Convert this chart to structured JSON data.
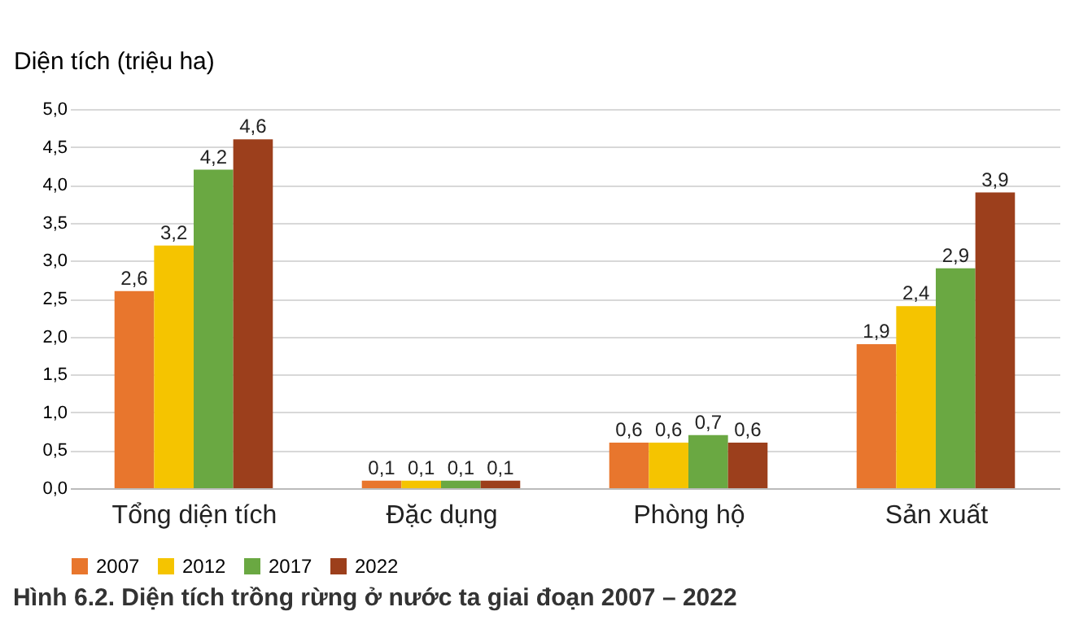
{
  "chart_data": {
    "type": "bar",
    "ylabel": "Diện tích (triệu ha)",
    "categories": [
      "Tổng diện tích",
      "Đặc dụng",
      "Phòng hộ",
      "Sản xuất"
    ],
    "series": [
      {
        "name": "2007",
        "color": "#e8762d",
        "values": [
          2.6,
          0.1,
          0.6,
          1.9
        ],
        "value_labels": [
          "2,6",
          "0,1",
          "0,6",
          "1,9"
        ]
      },
      {
        "name": "2012",
        "color": "#f5c400",
        "values": [
          3.2,
          0.1,
          0.6,
          2.4
        ],
        "value_labels": [
          "3,2",
          "0,1",
          "0,6",
          "2,4"
        ]
      },
      {
        "name": "2017",
        "color": "#6aa842",
        "values": [
          4.2,
          0.1,
          0.7,
          2.9
        ],
        "value_labels": [
          "4,2",
          "0,1",
          "0,7",
          "2,9"
        ]
      },
      {
        "name": "2022",
        "color": "#9c3f1c",
        "values": [
          4.6,
          0.1,
          0.6,
          3.9
        ],
        "value_labels": [
          "4,6",
          "0,1",
          "0,6",
          "3,9"
        ]
      }
    ],
    "ylim": [
      0,
      5
    ],
    "yticks": [
      {
        "value": 0,
        "label": "0,0"
      },
      {
        "value": 0.5,
        "label": "0,5"
      },
      {
        "value": 1,
        "label": "1,0"
      },
      {
        "value": 1.5,
        "label": "1,5"
      },
      {
        "value": 2,
        "label": "2,0"
      },
      {
        "value": 2.5,
        "label": "2,5"
      },
      {
        "value": 3,
        "label": "3,0"
      },
      {
        "value": 3.5,
        "label": "3,5"
      },
      {
        "value": 4,
        "label": "4,0"
      },
      {
        "value": 4.5,
        "label": "4,5"
      },
      {
        "value": 5,
        "label": "5,0"
      }
    ],
    "grid": "y",
    "legend": "bottom",
    "annotations": [
      "Hình 6.2. Diện tích trồng rừng ở nước ta giai đoạn 2007 – 2022"
    ]
  }
}
